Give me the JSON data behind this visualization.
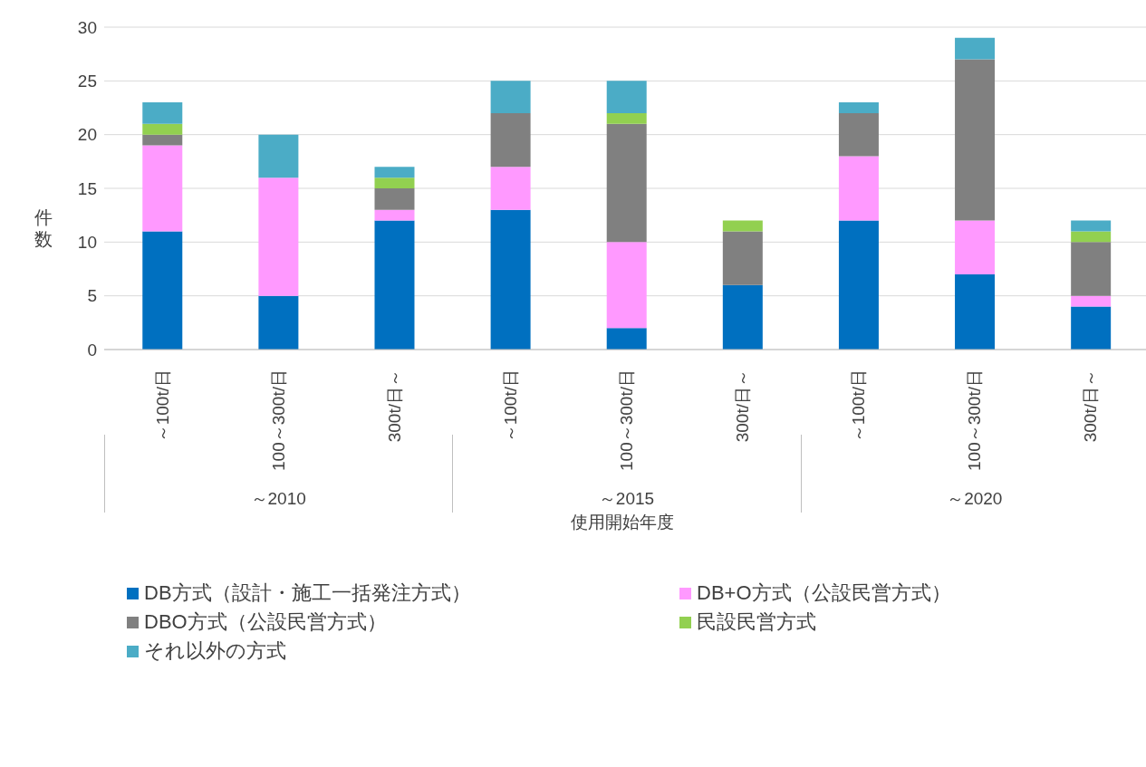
{
  "chart_data": {
    "type": "bar",
    "stacked": true,
    "xlabel": "使用開始年度",
    "ylabel": "件数",
    "categories": [
      "～100t/日",
      "100～300t/日",
      "300t/日～",
      "～100t/日",
      "100～300t/日",
      "300t/日～",
      "～100t/日",
      "100～300t/日",
      "300t/日～"
    ],
    "annotations": [
      "～2010",
      "～2015",
      "～2020"
    ],
    "series": [
      {
        "name": "DB方式（設計・施工一括発注方式）",
        "color": "#0070c0",
        "values": [
          11,
          5,
          12,
          13,
          2,
          6,
          12,
          7,
          4
        ]
      },
      {
        "name": "DB+O方式（公設民営方式）",
        "color": "#ff99ff",
        "values": [
          8,
          11,
          1,
          4,
          8,
          0,
          6,
          5,
          1
        ]
      },
      {
        "name": "DBO方式（公設民営方式）",
        "color": "#808080",
        "values": [
          1,
          0,
          2,
          5,
          11,
          5,
          4,
          15,
          5
        ]
      },
      {
        "name": "民設民営方式",
        "color": "#92d050",
        "values": [
          1,
          0,
          1,
          0,
          1,
          1,
          0,
          0,
          1
        ]
      },
      {
        "name": "それ以外の方式",
        "color": "#4bacc6",
        "values": [
          2,
          4,
          1,
          3,
          3,
          0,
          1,
          2,
          1
        ]
      }
    ],
    "ylim": [
      0,
      30
    ],
    "yticks": [
      0,
      5,
      10,
      15,
      20,
      25,
      30
    ],
    "grid": "y",
    "legend": "bottom"
  }
}
